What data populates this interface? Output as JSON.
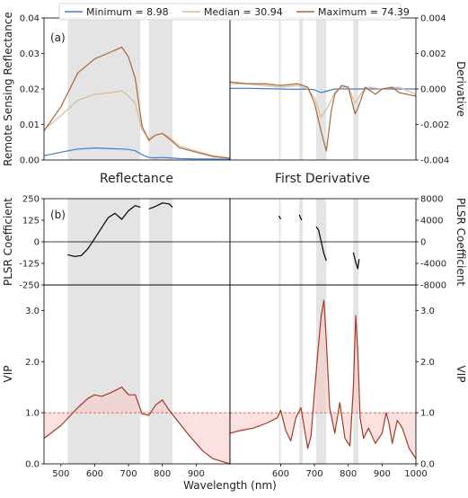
{
  "chart_data": [
    {
      "id": "a-reflectance",
      "panel_label": "(a)",
      "type": "line",
      "title": "Reflectance",
      "ylabel": "Remote Sensing Reflectance",
      "xlim": [
        450,
        1000
      ],
      "ylim": [
        0,
        0.04
      ],
      "yticks": [
        "0.00",
        "0.01",
        "0.02",
        "0.03",
        "0.04"
      ],
      "legend": [
        "Minimum = 8.98",
        "Median = 30.94",
        "Maximum = 74.39"
      ],
      "series": [
        {
          "name": "Minimum = 8.98",
          "color": "#3c7fd2",
          "x": [
            450,
            500,
            550,
            600,
            650,
            680,
            700,
            720,
            740,
            760,
            780,
            800,
            820,
            850,
            900,
            950,
            1000
          ],
          "y": [
            0.0012,
            0.0022,
            0.0031,
            0.0034,
            0.0032,
            0.0031,
            0.003,
            0.0026,
            0.0015,
            0.0007,
            0.0006,
            0.0007,
            0.0006,
            0.0004,
            0.0003,
            0.0003,
            0.0002
          ]
        },
        {
          "name": "Median = 30.94",
          "color": "#d8bb98",
          "x": [
            450,
            500,
            550,
            600,
            650,
            680,
            700,
            720,
            740,
            760,
            780,
            800,
            820,
            850,
            900,
            950,
            1000
          ],
          "y": [
            0.0085,
            0.0125,
            0.0168,
            0.0185,
            0.019,
            0.0195,
            0.018,
            0.016,
            0.0085,
            0.006,
            0.007,
            0.0075,
            0.0065,
            0.004,
            0.0025,
            0.0012,
            0.0005
          ]
        },
        {
          "name": "Maximum = 74.39",
          "color": "#a9673a",
          "x": [
            450,
            500,
            550,
            600,
            650,
            680,
            700,
            720,
            740,
            760,
            780,
            800,
            820,
            850,
            900,
            950,
            1000
          ],
          "y": [
            0.0082,
            0.015,
            0.0245,
            0.0285,
            0.0305,
            0.0318,
            0.029,
            0.023,
            0.0095,
            0.0055,
            0.007,
            0.0075,
            0.006,
            0.0035,
            0.0022,
            0.001,
            0.0005
          ]
        }
      ]
    },
    {
      "id": "a-derivative",
      "type": "line",
      "title": "First Derivative",
      "ylabel": "Derivative",
      "xlim": [
        450,
        1000
      ],
      "ylim": [
        -0.004,
        0.004
      ],
      "yticks": [
        "-0.004",
        "-0.002",
        "0.000",
        "0.002",
        "0.004"
      ],
      "series": [
        {
          "name": "Minimum = 8.98",
          "color": "#3c7fd2",
          "x": [
            450,
            500,
            550,
            600,
            650,
            680,
            700,
            720,
            740,
            760,
            800,
            850,
            900,
            950,
            1000
          ],
          "y": [
            3e-05,
            4e-05,
            2e-05,
            0.0,
            -2e-05,
            0.0,
            -5e-05,
            -0.0002,
            -0.0001,
            0.0,
            0.0,
            0.0,
            0.0,
            0.0,
            0.0
          ]
        },
        {
          "name": "Median = 30.94",
          "color": "#d8bb98",
          "x": [
            450,
            500,
            550,
            600,
            650,
            680,
            700,
            720,
            740,
            760,
            780,
            800,
            820,
            840,
            860,
            900,
            950,
            1000
          ],
          "y": [
            0.0003,
            0.0003,
            0.0002,
            0.0001,
            0.0002,
            0.0,
            -0.0005,
            -0.0016,
            -0.001,
            -0.0002,
            0.0001,
            0.0001,
            -0.0008,
            -0.0002,
            0.0001,
            0.0,
            0.0001,
            -0.0003
          ]
        },
        {
          "name": "Maximum = 74.39",
          "color": "#a9673a",
          "x": [
            450,
            500,
            550,
            600,
            650,
            680,
            700,
            720,
            735,
            750,
            760,
            780,
            800,
            820,
            830,
            850,
            880,
            900,
            930,
            950,
            1000
          ],
          "y": [
            0.0004,
            0.0003,
            0.0003,
            0.0002,
            0.0003,
            0.0001,
            -0.0008,
            -0.0024,
            -0.0035,
            -0.0012,
            -0.0003,
            0.0002,
            0.0001,
            -0.0014,
            -0.001,
            0.0001,
            -0.0003,
            0.0,
            0.0001,
            -0.0002,
            -0.0004
          ]
        }
      ]
    },
    {
      "id": "b-reflectance-plsr",
      "panel_label": "(b)",
      "type": "line",
      "ylabel": "PLSR Coefficient",
      "xlim": [
        450,
        1000
      ],
      "ylim": [
        -250,
        250
      ],
      "yticks": [
        "-250",
        "-125",
        "0",
        "125",
        "250"
      ],
      "series": [
        {
          "name": "",
          "color": "#000000",
          "x": [
            520,
            540,
            560,
            580,
            600,
            620,
            640,
            660,
            680,
            700,
            720,
            735
          ],
          "y": [
            -75,
            -85,
            -80,
            -40,
            20,
            80,
            140,
            165,
            130,
            180,
            210,
            200
          ]
        },
        {
          "name": "",
          "color": "#000000",
          "x": [
            760,
            780,
            800,
            820,
            830
          ],
          "y": [
            190,
            205,
            225,
            220,
            200
          ]
        }
      ]
    },
    {
      "id": "b-derivative-plsr",
      "type": "line",
      "ylabel": "PLSR Coefficient",
      "xlim": [
        450,
        1000
      ],
      "ylim": [
        -8000,
        8000
      ],
      "yticks": [
        "-8000",
        "-4000",
        "0",
        "4000",
        "8000"
      ],
      "series": [
        {
          "name": "",
          "color": "#000000",
          "x": [
            595,
            600
          ],
          "y": [
            4800,
            4200
          ]
        },
        {
          "name": "",
          "color": "#000000",
          "x": [
            655,
            662
          ],
          "y": [
            5000,
            4000
          ]
        },
        {
          "name": "",
          "color": "#000000",
          "x": [
            705,
            712,
            720,
            728,
            735
          ],
          "y": [
            2800,
            2200,
            0,
            -2200,
            -3500
          ]
        },
        {
          "name": "",
          "color": "#000000",
          "x": [
            815,
            822,
            828,
            832
          ],
          "y": [
            -2000,
            -3800,
            -5000,
            -3200
          ]
        }
      ]
    },
    {
      "id": "b-reflectance-vip",
      "type": "line",
      "ylabel": "VIP",
      "xlabel": "Wavelength (nm)",
      "xlim": [
        450,
        1000
      ],
      "ylim": [
        0,
        3.5
      ],
      "yticks": [
        "0.0",
        "1.0",
        "2.0",
        "3.0"
      ],
      "xticks": [
        "500",
        "600",
        "700",
        "800",
        "900",
        "1000"
      ],
      "threshold": 1.0,
      "series": [
        {
          "name": "",
          "color": "#a23b24",
          "x": [
            450,
            500,
            550,
            580,
            600,
            620,
            650,
            680,
            700,
            720,
            740,
            760,
            780,
            800,
            820,
            850,
            880,
            900,
            920,
            950,
            1000
          ],
          "y": [
            0.5,
            0.75,
            1.1,
            1.28,
            1.35,
            1.32,
            1.4,
            1.5,
            1.35,
            1.35,
            0.98,
            0.95,
            1.15,
            1.25,
            1.05,
            0.8,
            0.55,
            0.4,
            0.25,
            0.1,
            0.0
          ]
        }
      ]
    },
    {
      "id": "b-derivative-vip",
      "type": "line",
      "ylabel": "VIP",
      "xlabel": "Wavelength (nm)",
      "xlim": [
        450,
        1000
      ],
      "ylim": [
        0,
        3.5
      ],
      "yticks": [
        "0.0",
        "1.0",
        "2.0",
        "3.0"
      ],
      "xticks": [
        "500",
        "600",
        "700",
        "800",
        "900",
        "1000"
      ],
      "threshold": 1.0,
      "series": [
        {
          "name": "",
          "color": "#a23b24",
          "x": [
            450,
            480,
            520,
            560,
            590,
            600,
            615,
            630,
            645,
            660,
            670,
            680,
            690,
            700,
            710,
            720,
            728,
            735,
            745,
            760,
            775,
            790,
            805,
            815,
            822,
            828,
            835,
            845,
            860,
            880,
            900,
            912,
            920,
            930,
            945,
            960,
            980,
            1000
          ],
          "y": [
            0.6,
            0.65,
            0.7,
            0.8,
            0.9,
            1.05,
            0.65,
            0.45,
            0.9,
            1.1,
            0.7,
            0.3,
            0.55,
            1.4,
            2.2,
            2.9,
            3.2,
            2.4,
            1.1,
            0.6,
            1.2,
            0.5,
            0.35,
            1.5,
            2.9,
            2.2,
            0.9,
            0.5,
            0.7,
            0.4,
            0.6,
            1.0,
            0.8,
            0.4,
            0.85,
            0.7,
            0.3,
            0.1
          ]
        }
      ]
    }
  ],
  "shaded_bands_nm": [
    [
      520,
      735
    ],
    [
      760,
      830
    ]
  ],
  "shaded_bands_deriv_nm": [
    [
      595,
      600
    ],
    [
      655,
      665
    ],
    [
      705,
      735
    ],
    [
      815,
      830
    ]
  ],
  "bottom_xlabel": "Wavelength (nm)",
  "xticks_shown": [
    "500",
    "600",
    "700",
    "800",
    "900",
    "1000"
  ]
}
